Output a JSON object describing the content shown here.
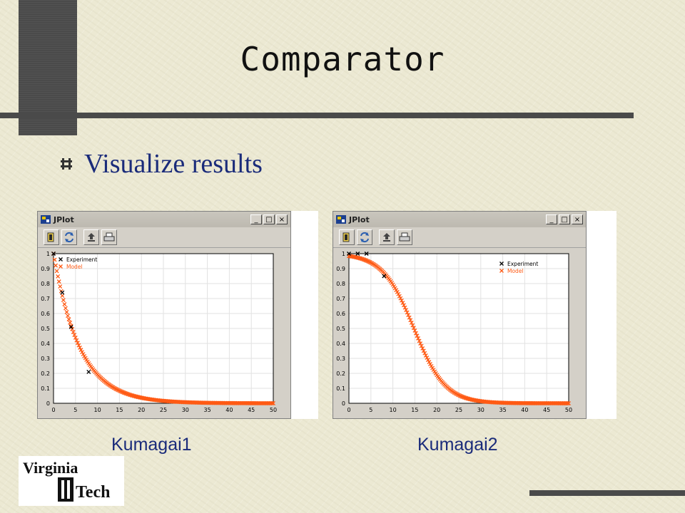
{
  "slide": {
    "title": "Comparator",
    "bullet": "Visualize results",
    "colors": {
      "title": "#111111",
      "bullet_text": "#1a2b7a",
      "caption": "#1a2b7a",
      "deco": "#4a4a4a",
      "model": "#ff5a14",
      "experiment": "#000000"
    }
  },
  "windows": [
    {
      "title": "JPlot",
      "caption": "Kumagai1",
      "buttons": {
        "minimize": "_",
        "maximize": "□",
        "close": "×"
      },
      "toolbar_icons": [
        "open-icon",
        "refresh-icon",
        "export-icon",
        "print-icon"
      ]
    },
    {
      "title": "JPlot",
      "caption": "Kumagai2",
      "buttons": {
        "minimize": "_",
        "maximize": "□",
        "close": "×"
      },
      "toolbar_icons": [
        "open-icon",
        "refresh-icon",
        "export-icon",
        "print-icon"
      ]
    }
  ],
  "logo": {
    "line1": "Virginia",
    "line2": "Tech"
  },
  "chart_data": [
    {
      "type": "scatter",
      "title": "",
      "xlabel": "",
      "ylabel": "",
      "xlim": [
        0,
        50
      ],
      "ylim": [
        0,
        1
      ],
      "xticks": [
        0,
        5,
        10,
        15,
        20,
        25,
        30,
        35,
        40,
        45,
        50
      ],
      "yticks": [
        0,
        0.1,
        0.2,
        0.3,
        0.4,
        0.5,
        0.6,
        0.7,
        0.8,
        0.9,
        1
      ],
      "grid": true,
      "legend_position": "top-left",
      "series": [
        {
          "name": "Experiment",
          "marker": "x",
          "color": "#000000",
          "x": [
            0,
            2,
            4,
            8
          ],
          "y": [
            1.0,
            0.74,
            0.51,
            0.21
          ]
        },
        {
          "name": "Model",
          "marker": "x",
          "color": "#ff5a14",
          "model": "exponential",
          "k": 0.165
        }
      ]
    },
    {
      "type": "scatter",
      "title": "",
      "xlabel": "",
      "ylabel": "",
      "xlim": [
        0,
        50
      ],
      "ylim": [
        0,
        1
      ],
      "xticks": [
        0,
        5,
        10,
        15,
        20,
        25,
        30,
        35,
        40,
        45,
        50
      ],
      "yticks": [
        0,
        0.1,
        0.2,
        0.3,
        0.4,
        0.5,
        0.6,
        0.7,
        0.8,
        0.9,
        1
      ],
      "grid": true,
      "legend_position": "top-right",
      "series": [
        {
          "name": "Experiment",
          "marker": "x",
          "color": "#000000",
          "x": [
            0,
            2,
            4,
            8
          ],
          "y": [
            1.0,
            1.0,
            1.0,
            0.85
          ]
        },
        {
          "name": "Model",
          "marker": "x",
          "color": "#ff5a14",
          "model": "logistic",
          "x0": 14.8,
          "k": 0.28
        }
      ]
    }
  ]
}
